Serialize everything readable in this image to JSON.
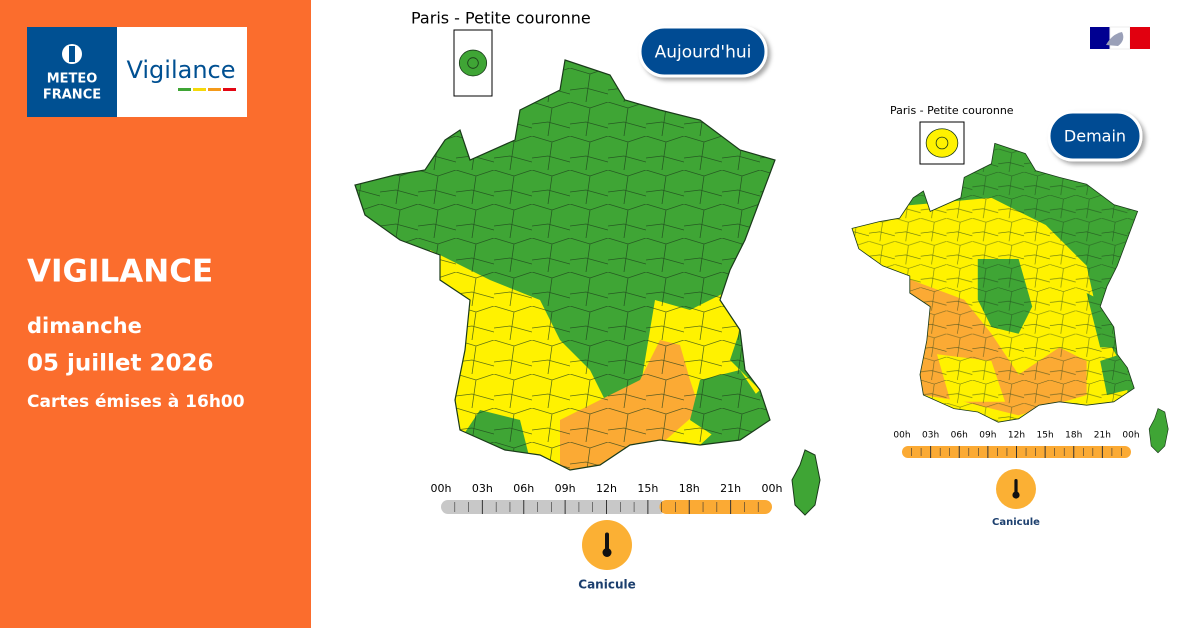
{
  "logo": {
    "brand": [
      "METEO",
      "FRANCE"
    ],
    "product": "Vigilance"
  },
  "sidebar": {
    "title": "VIGILANCE",
    "day": "dimanche",
    "date": "05 juillet 2026",
    "issued": "Cartes émises à 16h00"
  },
  "maps": [
    {
      "inset_label": "Paris - Petite couronne",
      "badge": "Aujourd'hui",
      "timeline": [
        "00h",
        "03h",
        "06h",
        "09h",
        "12h",
        "15h",
        "18h",
        "21h",
        "00h"
      ],
      "hazard": "Canicule"
    },
    {
      "inset_label": "Paris - Petite couronne",
      "badge": "Demain",
      "timeline": [
        "00h",
        "03h",
        "06h",
        "09h",
        "12h",
        "15h",
        "18h",
        "21h",
        "00h"
      ],
      "hazard": "Canicule"
    }
  ]
}
